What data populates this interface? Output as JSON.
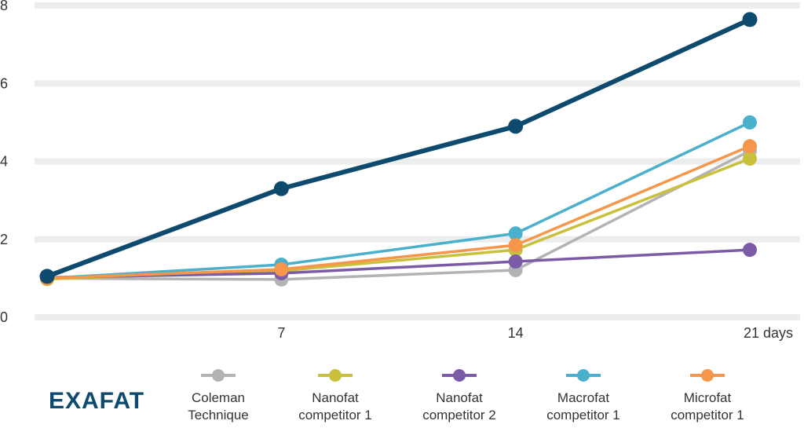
{
  "chart_data": {
    "type": "line",
    "title": "",
    "xlabel": "",
    "ylabel": "",
    "x": [
      0,
      7,
      14,
      21
    ],
    "x_tick_labels": [
      "7",
      "14",
      "21 days"
    ],
    "x_ticks": [
      7,
      14,
      21
    ],
    "y_ticks": [
      "0",
      "2",
      "4",
      "6",
      "8"
    ],
    "ylim": [
      0,
      8
    ],
    "grid": true,
    "legend_position": "bottom",
    "series": [
      {
        "name": "Coleman Technique",
        "label_lines": [
          "Coleman",
          "Technique"
        ],
        "color": "#b3b3b3",
        "values": [
          1.0,
          0.97,
          1.21,
          4.27
        ]
      },
      {
        "name": "Nanofat competitor 1",
        "label_lines": [
          "Nanofat",
          "competitor 1"
        ],
        "color": "#c9c13c",
        "values": [
          0.98,
          1.19,
          1.73,
          4.07
        ]
      },
      {
        "name": "Nanofat competitor 2",
        "label_lines": [
          "Nanofat",
          "competitor 2"
        ],
        "color": "#7b5aa6",
        "values": [
          1.02,
          1.13,
          1.43,
          1.73
        ]
      },
      {
        "name": "Macrofat competitor 1",
        "label_lines": [
          "Macrofat",
          "competitor 1"
        ],
        "color": "#4bb0cc",
        "values": [
          1.0,
          1.35,
          2.15,
          5.0
        ]
      },
      {
        "name": "Microfat competitor 1",
        "label_lines": [
          "Microfat",
          "competitor 1"
        ],
        "color": "#f5964a",
        "values": [
          1.0,
          1.23,
          1.85,
          4.39
        ]
      },
      {
        "name": "EXAFAT",
        "color": "#0d4a6e",
        "values": [
          1.05,
          3.3,
          4.9,
          7.64
        ],
        "bold": true
      }
    ]
  },
  "brand": {
    "logo_text": "EXAFAT"
  }
}
